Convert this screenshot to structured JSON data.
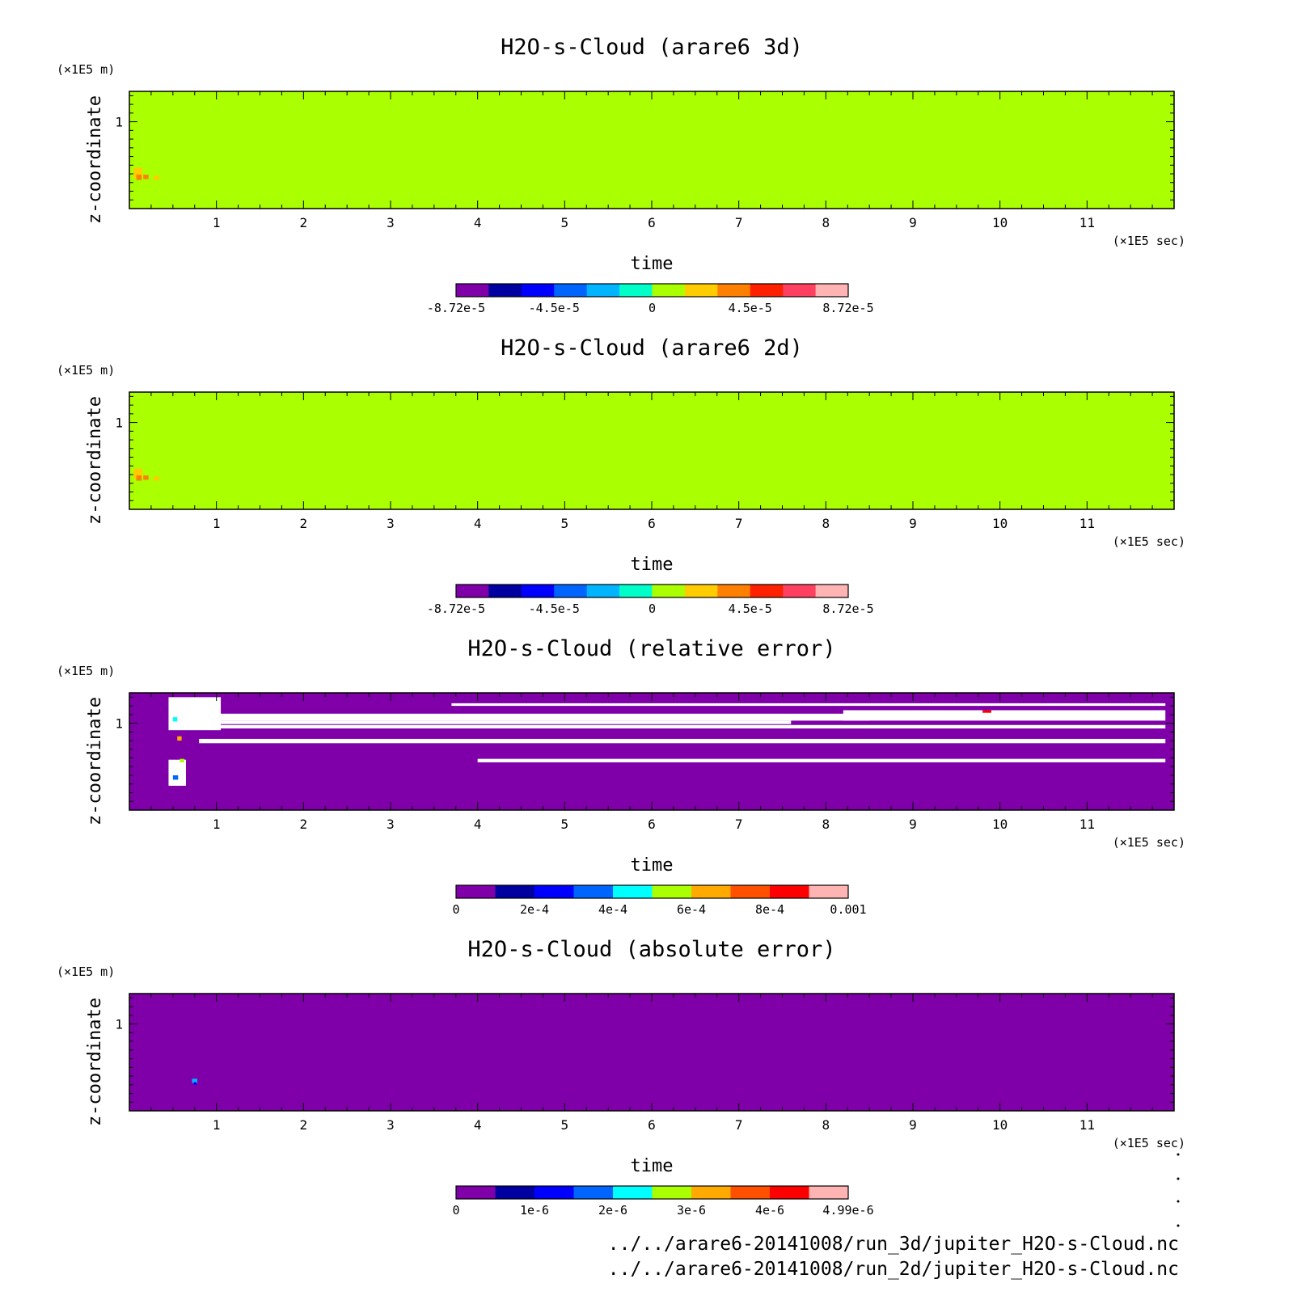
{
  "chart_data": [
    {
      "type": "heatmap",
      "title": "H2O-s-Cloud (arare6 3d)",
      "xlabel": "time",
      "xunit": "(×1E5 sec)",
      "ylabel": "z-coordinate",
      "yunit": "(×1E5 m)",
      "xlim": [
        0,
        12
      ],
      "ylim": [
        0,
        1.35
      ],
      "xticks": [
        "1",
        "2",
        "3",
        "4",
        "5",
        "6",
        "7",
        "8",
        "9",
        "10",
        "11"
      ],
      "yticks": [
        "1"
      ],
      "colorbar": {
        "colors": [
          "#7f00a8",
          "#0000a0",
          "#0000ff",
          "#0064ff",
          "#00b4ff",
          "#00ffc8",
          "#aaff00",
          "#ffcc00",
          "#ff7f00",
          "#ff2000",
          "#ff4060",
          "#ffb4b4"
        ],
        "labels": [
          "-8.72e-5",
          "-4.5e-5",
          "0",
          "4.5e-5",
          "8.72e-5"
        ]
      },
      "background_color": "#aaff00",
      "features": [
        {
          "x": 0.05,
          "y": 0.35,
          "w": 0.1,
          "h": 0.12,
          "color": "#ffcc00"
        },
        {
          "x": 0.08,
          "y": 0.33,
          "w": 0.06,
          "h": 0.06,
          "color": "#ff7f00"
        },
        {
          "x": 0.16,
          "y": 0.34,
          "w": 0.06,
          "h": 0.05,
          "color": "#ff7f00"
        },
        {
          "x": 0.28,
          "y": 0.33,
          "w": 0.06,
          "h": 0.05,
          "color": "#ffcc00"
        }
      ]
    },
    {
      "type": "heatmap",
      "title": "H2O-s-Cloud (arare6 2d)",
      "xlabel": "time",
      "xunit": "(×1E5 sec)",
      "ylabel": "z-coordinate",
      "yunit": "(×1E5 m)",
      "xlim": [
        0,
        12
      ],
      "ylim": [
        0,
        1.35
      ],
      "xticks": [
        "1",
        "2",
        "3",
        "4",
        "5",
        "6",
        "7",
        "8",
        "9",
        "10",
        "11"
      ],
      "yticks": [
        "1"
      ],
      "colorbar": {
        "colors": [
          "#7f00a8",
          "#0000a0",
          "#0000ff",
          "#0064ff",
          "#00b4ff",
          "#00ffc8",
          "#aaff00",
          "#ffcc00",
          "#ff7f00",
          "#ff2000",
          "#ff4060",
          "#ffb4b4"
        ],
        "labels": [
          "-8.72e-5",
          "-4.5e-5",
          "0",
          "4.5e-5",
          "8.72e-5"
        ]
      },
      "background_color": "#aaff00",
      "features": [
        {
          "x": 0.05,
          "y": 0.35,
          "w": 0.1,
          "h": 0.12,
          "color": "#ffcc00"
        },
        {
          "x": 0.08,
          "y": 0.33,
          "w": 0.06,
          "h": 0.06,
          "color": "#ff7f00"
        },
        {
          "x": 0.16,
          "y": 0.34,
          "w": 0.06,
          "h": 0.05,
          "color": "#ff7f00"
        },
        {
          "x": 0.28,
          "y": 0.33,
          "w": 0.06,
          "h": 0.05,
          "color": "#ffcc00"
        }
      ]
    },
    {
      "type": "heatmap",
      "title": "H2O-s-Cloud (relative error)",
      "xlabel": "time",
      "xunit": "(×1E5 sec)",
      "ylabel": "z-coordinate",
      "yunit": "(×1E5 m)",
      "xlim": [
        0,
        12
      ],
      "ylim": [
        0,
        1.35
      ],
      "xticks": [
        "1",
        "2",
        "3",
        "4",
        "5",
        "6",
        "7",
        "8",
        "9",
        "10",
        "11"
      ],
      "yticks": [
        "1"
      ],
      "colorbar": {
        "colors": [
          "#7f00a8",
          "#0000a0",
          "#0000ff",
          "#0064ff",
          "#00ffff",
          "#aaff00",
          "#ffaa00",
          "#ff5000",
          "#ff0000",
          "#ffb4b4"
        ],
        "labels": [
          "0",
          "2e-4",
          "4e-4",
          "6e-4",
          "8e-4",
          "0.001"
        ]
      },
      "background_color": "#7f00a8",
      "features": [
        {
          "x": 0.45,
          "y": 0.92,
          "w": 0.6,
          "h": 0.38,
          "color": "#ffffff"
        },
        {
          "x": 0.45,
          "y": 0.28,
          "w": 0.2,
          "h": 0.3,
          "color": "#ffffff"
        },
        {
          "x": 0.5,
          "y": 1.03,
          "w": 8.0,
          "h": 0.08,
          "color": "#ffffff"
        },
        {
          "x": 0.6,
          "y": 0.99,
          "w": 7.0,
          "h": 0.04,
          "color": "#ffffff"
        },
        {
          "x": 3.7,
          "y": 1.2,
          "w": 8.2,
          "h": 0.03,
          "color": "#ffffff"
        },
        {
          "x": 8.2,
          "y": 1.03,
          "w": 3.7,
          "h": 0.12,
          "color": "#ffffff"
        },
        {
          "x": 1.0,
          "y": 0.94,
          "w": 10.9,
          "h": 0.04,
          "color": "#ffffff"
        },
        {
          "x": 0.8,
          "y": 0.77,
          "w": 11.1,
          "h": 0.05,
          "color": "#ffffff"
        },
        {
          "x": 4.0,
          "y": 0.55,
          "w": 7.9,
          "h": 0.04,
          "color": "#ffffff"
        },
        {
          "x": 0.5,
          "y": 1.02,
          "w": 0.05,
          "h": 0.05,
          "color": "#00ffff"
        },
        {
          "x": 0.55,
          "y": 0.8,
          "w": 0.05,
          "h": 0.05,
          "color": "#ffaa00"
        },
        {
          "x": 0.5,
          "y": 0.35,
          "w": 0.06,
          "h": 0.05,
          "color": "#0064ff"
        },
        {
          "x": 0.58,
          "y": 0.55,
          "w": 0.05,
          "h": 0.04,
          "color": "#aaff00"
        },
        {
          "x": 9.8,
          "y": 1.12,
          "w": 0.1,
          "h": 0.03,
          "color": "#ff0000"
        }
      ]
    },
    {
      "type": "heatmap",
      "title": "H2O-s-Cloud (absolute error)",
      "xlabel": "time",
      "xunit": "(×1E5 sec)",
      "ylabel": "z-coordinate",
      "yunit": "(×1E5 m)",
      "xlim": [
        0,
        12
      ],
      "ylim": [
        0,
        1.35
      ],
      "xticks": [
        "1",
        "2",
        "3",
        "4",
        "5",
        "6",
        "7",
        "8",
        "9",
        "10",
        "11"
      ],
      "yticks": [
        "1"
      ],
      "colorbar": {
        "colors": [
          "#7f00a8",
          "#0000a0",
          "#0000ff",
          "#0064ff",
          "#00ffff",
          "#aaff00",
          "#ffaa00",
          "#ff5000",
          "#ff0000",
          "#ffb4b4"
        ],
        "labels": [
          "0",
          "1e-6",
          "2e-6",
          "3e-6",
          "4e-6",
          "4.99e-6"
        ]
      },
      "background_color": "#7f00a8",
      "features": [
        {
          "x": 0.72,
          "y": 0.32,
          "w": 0.06,
          "h": 0.05,
          "color": "#00b4ff"
        },
        {
          "x": 0.74,
          "y": 0.3,
          "w": 0.03,
          "h": 0.03,
          "color": "#0000ff"
        }
      ]
    }
  ],
  "footer": {
    "path_3d": "../../arare6-20141008/run_3d/jupiter_H2O-s-Cloud.nc",
    "path_2d": "../../arare6-20141008/run_2d/jupiter_H2O-s-Cloud.nc"
  }
}
